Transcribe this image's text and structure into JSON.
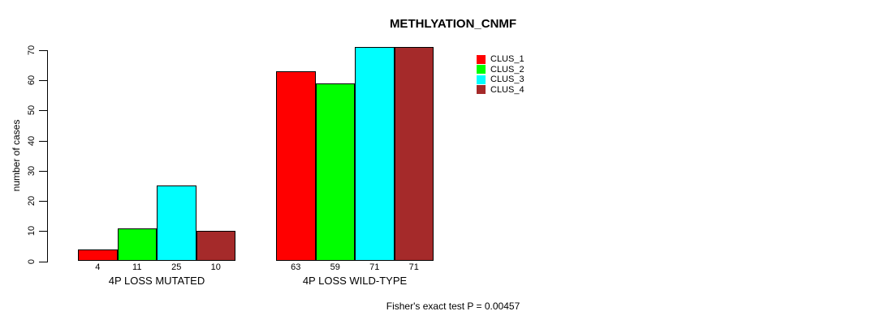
{
  "chart_data": {
    "type": "bar",
    "title": "METHLYATION_CNMF",
    "xlabel": "",
    "ylabel": "number of cases",
    "ylim": [
      0,
      71
    ],
    "yticks": [
      0,
      10,
      20,
      30,
      40,
      50,
      60,
      70
    ],
    "grid": false,
    "legend_position": "topright",
    "categories": [
      "4P LOSS MUTATED",
      "4P LOSS WILD-TYPE"
    ],
    "series": [
      {
        "name": "CLUS_1",
        "color": "#FF0000",
        "values": [
          4,
          63
        ]
      },
      {
        "name": "CLUS_2",
        "color": "#00FF00",
        "values": [
          11,
          59
        ]
      },
      {
        "name": "CLUS_3",
        "color": "#00FFFF",
        "values": [
          25,
          71
        ]
      },
      {
        "name": "CLUS_4",
        "color": "#A52A2A",
        "values": [
          10,
          71
        ]
      }
    ],
    "bar_value_labels": [
      [
        4,
        11,
        25,
        10
      ],
      [
        63,
        59,
        71,
        71
      ]
    ],
    "annotation": "Fisher's exact test P = 0.00457"
  }
}
